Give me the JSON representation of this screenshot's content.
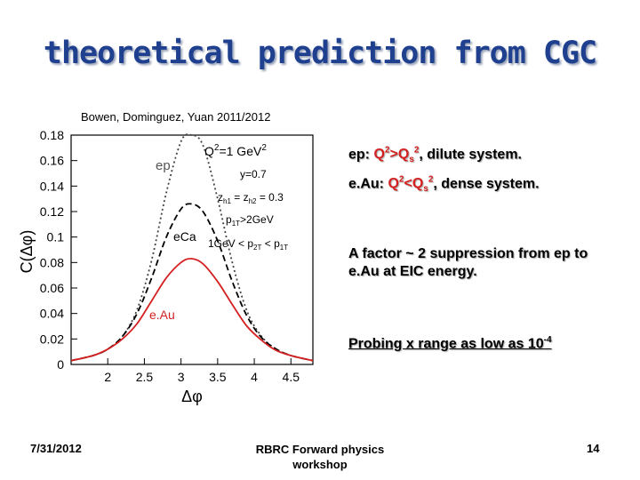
{
  "slide": {
    "title": "theoretical prediction from CGC",
    "citation": "Bowen, Dominguez, Yuan 2011/2012"
  },
  "right_text": {
    "ep_line": {
      "prefix": "ep: ",
      "q": "Q",
      "q_exp": "2",
      "gt": ">Q",
      "s": "s",
      "s_exp": "2",
      "suffix": ", dilute system."
    },
    "eau_line": {
      "prefix": "e.Au: ",
      "q": "Q",
      "q_exp": "2",
      "lt": "<Q",
      "s": "s",
      "s_exp": "2",
      "suffix": ", dense system."
    },
    "factor": "A factor ~ 2 suppression from ep to e.Au at EIC energy.",
    "probing": {
      "text": "Probing x range as low as 10",
      "exp": "-4"
    }
  },
  "footer": {
    "date": "7/31/2012",
    "center": "RBRC Forward physics workshop",
    "page": "14"
  },
  "chart_data": {
    "type": "line",
    "xlabel": "Δφ",
    "ylabel": "C(Δφ)",
    "xlim": [
      1.5,
      4.8
    ],
    "ylim": [
      0,
      0.18
    ],
    "x_ticks": [
      2,
      2.5,
      3,
      3.5,
      4,
      4.5
    ],
    "y_ticks": [
      0,
      0.02,
      0.04,
      0.06,
      0.08,
      0.1,
      0.12,
      0.14,
      0.16,
      0.18
    ],
    "series": [
      {
        "name": "ep",
        "color": "#444444",
        "dash": "dotted",
        "x": [
          1.5,
          1.8,
          2.0,
          2.2,
          2.4,
          2.6,
          2.8,
          3.0,
          3.14,
          3.3,
          3.5,
          3.7,
          3.9,
          4.1,
          4.3,
          4.5,
          4.8
        ],
        "y": [
          0.003,
          0.007,
          0.012,
          0.022,
          0.043,
          0.082,
          0.135,
          0.175,
          0.18,
          0.172,
          0.13,
          0.08,
          0.042,
          0.022,
          0.012,
          0.007,
          0.003
        ]
      },
      {
        "name": "eCa",
        "color": "#000000",
        "dash": "dashed",
        "x": [
          1.5,
          1.8,
          2.0,
          2.2,
          2.4,
          2.6,
          2.8,
          3.0,
          3.14,
          3.3,
          3.5,
          3.7,
          3.9,
          4.1,
          4.3,
          4.5,
          4.8
        ],
        "y": [
          0.003,
          0.007,
          0.012,
          0.022,
          0.04,
          0.068,
          0.1,
          0.122,
          0.126,
          0.12,
          0.097,
          0.065,
          0.038,
          0.021,
          0.012,
          0.007,
          0.003
        ]
      },
      {
        "name": "eAu",
        "color": "#d42020",
        "dash": "solid",
        "x": [
          1.5,
          1.8,
          2.0,
          2.2,
          2.4,
          2.6,
          2.8,
          3.0,
          3.14,
          3.3,
          3.5,
          3.7,
          3.9,
          4.1,
          4.3,
          4.5,
          4.8
        ],
        "y": [
          0.003,
          0.007,
          0.012,
          0.02,
          0.032,
          0.05,
          0.068,
          0.08,
          0.083,
          0.079,
          0.065,
          0.047,
          0.03,
          0.019,
          0.011,
          0.007,
          0.003
        ]
      }
    ],
    "curve_labels": {
      "ep": "ep",
      "eca": "eCa",
      "eau": "e.Au"
    },
    "annotations": {
      "q2": {
        "base": "Q",
        "exp": "2",
        "mid": "=1 GeV",
        "exp2": "2"
      },
      "y": "y=0.7",
      "z": {
        "p1": "z",
        "s1": "h1",
        "p2": " = z",
        "s2": "h2",
        "p3": " = 0.3"
      },
      "p1t": {
        "p1": "p",
        "s1": "1T",
        "p2": ">2GeV"
      },
      "range": {
        "p1": "1GeV < p",
        "s1": "2T",
        "p2": " < p",
        "s2": "1T"
      }
    }
  }
}
